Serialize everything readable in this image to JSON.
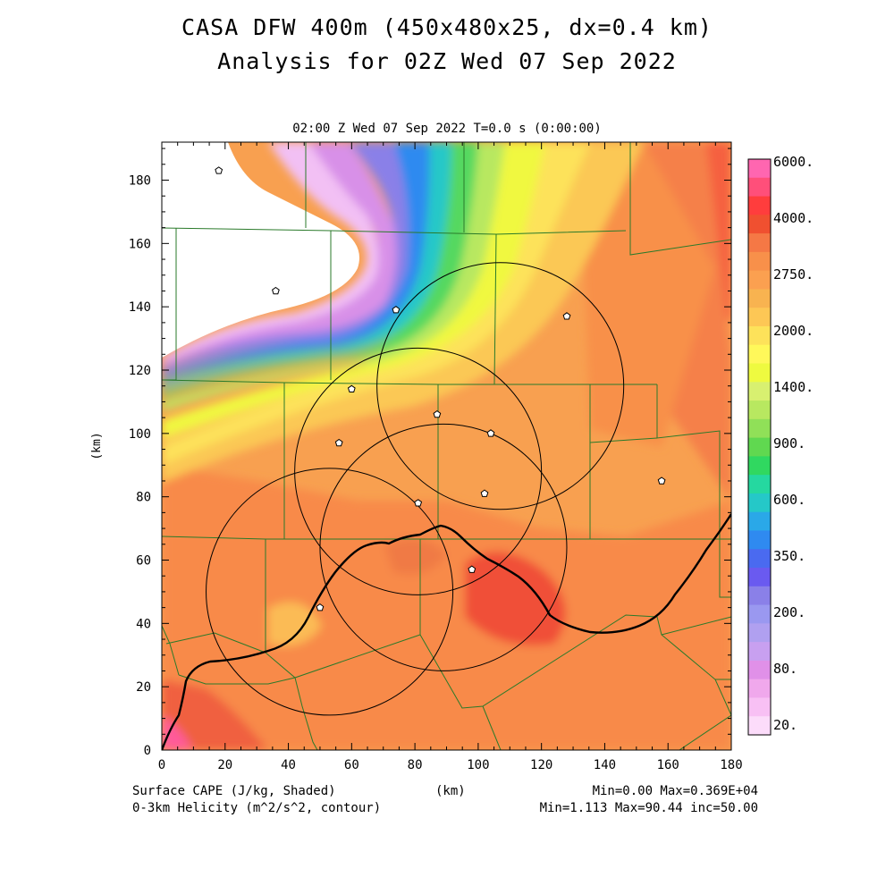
{
  "titles": {
    "line1": "CASA DFW 400m (450x480x25, dx=0.4 km)",
    "line2": "Analysis for 02Z Wed 07 Sep 2022",
    "time_label": "02:00 Z Wed 07 Sep 2022   T=0.0 s (0:00:00)"
  },
  "axes": {
    "x_ticks": [
      "0",
      "20",
      "40",
      "60",
      "80",
      "100",
      "120",
      "140",
      "160",
      "180"
    ],
    "y_ticks": [
      "0",
      "20",
      "40",
      "60",
      "80",
      "100",
      "120",
      "140",
      "160",
      "180"
    ],
    "xlabel": "(km)",
    "ylabel": "(km)",
    "x_range": [
      0,
      180
    ],
    "y_range": [
      0,
      192
    ]
  },
  "colorbar": {
    "labels": [
      "6000.",
      "4000.",
      "2750.",
      "2000.",
      "1400.",
      "900.",
      "600.",
      "350.",
      "200.",
      "80.",
      "20."
    ],
    "colors": [
      "#ff66b0",
      "#ff4f7a",
      "#ff3d3d",
      "#f05030",
      "#f57845",
      "#f8904a",
      "#fba050",
      "#f8b350",
      "#fdc755",
      "#fde25a",
      "#fff85a",
      "#eefa40",
      "#d8f070",
      "#b8e860",
      "#90e058",
      "#60d850",
      "#30d860",
      "#25d8a0",
      "#25c8c8",
      "#2aa8e8",
      "#2f8af0",
      "#4a6af0",
      "#6a5af0",
      "#8a80e8",
      "#9a98f0",
      "#b0a0f0",
      "#c8a0f0",
      "#e090e8",
      "#f0a8ec",
      "#f8c0f4",
      "#fcdcfa"
    ]
  },
  "map_markers": {
    "radar_rings_km": [
      [
        107,
        115,
        39
      ],
      [
        81,
        88,
        39
      ],
      [
        89,
        64,
        39
      ],
      [
        53,
        50,
        39
      ]
    ],
    "city_points_km": [
      [
        18,
        183
      ],
      [
        36,
        145
      ],
      [
        74,
        139
      ],
      [
        60,
        114
      ],
      [
        87,
        106
      ],
      [
        104,
        100
      ],
      [
        128,
        137
      ],
      [
        56,
        97
      ],
      [
        81,
        78
      ],
      [
        102,
        81
      ],
      [
        98,
        57
      ],
      [
        158,
        85
      ],
      [
        50,
        45
      ]
    ]
  },
  "footer": {
    "left1": "Surface CAPE (J/kg, Shaded)",
    "left2": "0-3km Helicity (m^2/s^2, contour)",
    "center": "(km)",
    "right1": "Min=0.00 Max=0.369E+04",
    "right2": "Min=1.113 Max=90.44 inc=50.00"
  }
}
